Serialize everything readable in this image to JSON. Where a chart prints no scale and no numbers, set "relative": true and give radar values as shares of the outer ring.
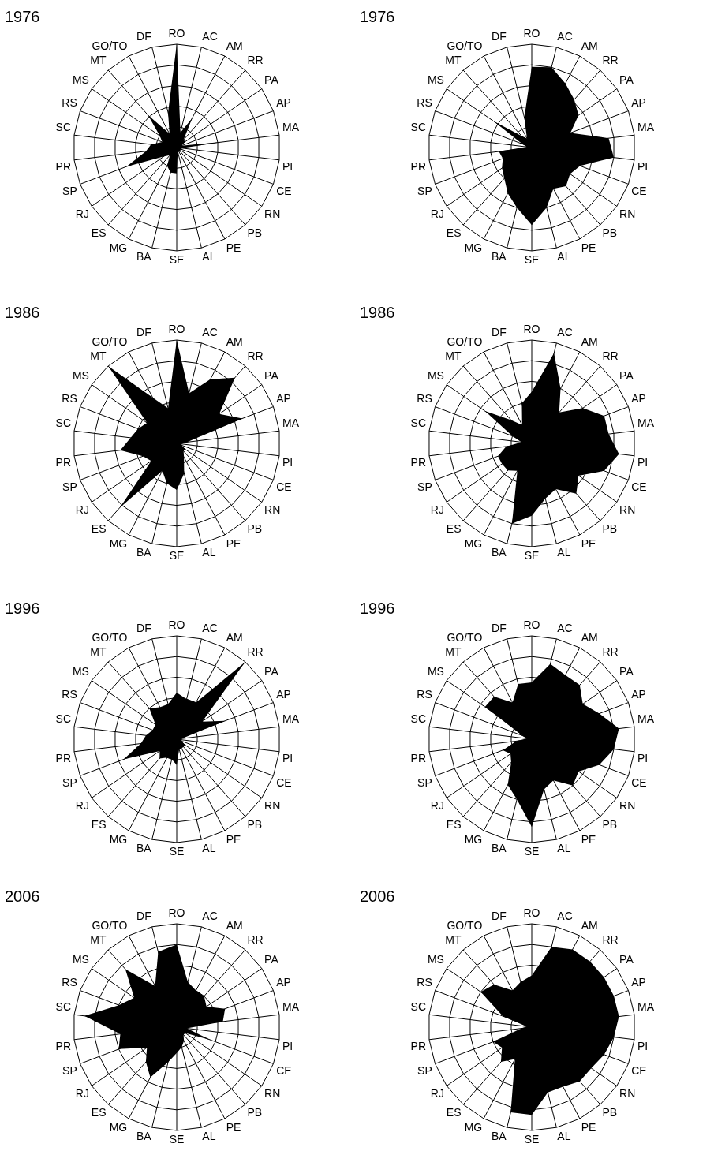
{
  "chart_data": [
    {
      "type": "radar",
      "title": "1976",
      "relative": true,
      "grid": true,
      "categories": [
        "RO",
        "AC",
        "AM",
        "RR",
        "PA",
        "AP",
        "MA",
        "PI",
        "CE",
        "RN",
        "PB",
        "PE",
        "AL",
        "SE",
        "BA",
        "MG",
        "ES",
        "RJ",
        "SP",
        "PR",
        "SC",
        "RS",
        "MS",
        "MT",
        "GO/TO",
        "DF"
      ],
      "series": [
        {
          "color": "#000000",
          "values": [
            1.0,
            0.15,
            0.32,
            0.1,
            0.1,
            0.05,
            0.43,
            0.05,
            0.05,
            0.04,
            0.05,
            0.05,
            0.04,
            0.25,
            0.25,
            0.2,
            0.1,
            0.15,
            0.52,
            0.3,
            0.25,
            0.15,
            0.2,
            0.42,
            0.15,
            0.35
          ]
        }
      ]
    },
    {
      "type": "radar",
      "title": "1976",
      "relative": true,
      "grid": true,
      "categories": [
        "RO",
        "AC",
        "AM",
        "RR",
        "PA",
        "AP",
        "MA",
        "PI",
        "CE",
        "RN",
        "PB",
        "PE",
        "AL",
        "SE",
        "BA",
        "MG",
        "ES",
        "RJ",
        "SP",
        "PR",
        "SC",
        "RS",
        "MS",
        "MT",
        "GO/TO",
        "DF"
      ],
      "series": [
        {
          "color": "#000000",
          "values": [
            0.78,
            0.8,
            0.7,
            0.62,
            0.55,
            0.4,
            0.75,
            0.8,
            0.5,
            0.45,
            0.5,
            0.45,
            0.6,
            0.75,
            0.6,
            0.5,
            0.4,
            0.35,
            0.3,
            0.32,
            0.05,
            0.1,
            0.45,
            0.15,
            0.1,
            0.3
          ]
        }
      ]
    },
    {
      "type": "radar",
      "title": "1986",
      "relative": true,
      "grid": true,
      "categories": [
        "RO",
        "AC",
        "AM",
        "RR",
        "PA",
        "AP",
        "MA",
        "PI",
        "CE",
        "RN",
        "PB",
        "PE",
        "AL",
        "SE",
        "BA",
        "MG",
        "ES",
        "RJ",
        "SP",
        "PR",
        "SC",
        "RS",
        "MS",
        "MT",
        "GO/TO",
        "DF"
      ],
      "series": [
        {
          "color": "#000000",
          "values": [
            1.0,
            0.5,
            0.7,
            0.85,
            0.5,
            0.68,
            0.1,
            0.05,
            0.05,
            0.1,
            0.1,
            0.15,
            0.3,
            0.45,
            0.4,
            0.3,
            0.83,
            0.3,
            0.35,
            0.55,
            0.45,
            0.4,
            0.35,
            1.0,
            0.5,
            0.35
          ]
        }
      ]
    },
    {
      "type": "radar",
      "title": "1986",
      "relative": true,
      "grid": true,
      "categories": [
        "RO",
        "AC",
        "AM",
        "RR",
        "PA",
        "AP",
        "MA",
        "PI",
        "CE",
        "RN",
        "PB",
        "PE",
        "AL",
        "SE",
        "BA",
        "MG",
        "ES",
        "RJ",
        "SP",
        "PR",
        "SC",
        "RS",
        "MS",
        "MT",
        "GO/TO",
        "DF"
      ],
      "series": [
        {
          "color": "#000000",
          "values": [
            0.5,
            0.9,
            0.6,
            0.4,
            0.6,
            0.75,
            0.75,
            0.85,
            0.75,
            0.55,
            0.65,
            0.5,
            0.55,
            0.7,
            0.8,
            0.3,
            0.35,
            0.35,
            0.35,
            0.25,
            0.1,
            0.2,
            0.55,
            0.3,
            0.2,
            0.4
          ]
        }
      ]
    },
    {
      "type": "radar",
      "title": "1996",
      "relative": true,
      "grid": true,
      "categories": [
        "RO",
        "AC",
        "AM",
        "RR",
        "PA",
        "AP",
        "MA",
        "PI",
        "CE",
        "RN",
        "PB",
        "PE",
        "AL",
        "SE",
        "BA",
        "MG",
        "ES",
        "RJ",
        "SP",
        "PR",
        "SC",
        "RS",
        "MS",
        "MT",
        "GO/TO",
        "DF"
      ],
      "series": [
        {
          "color": "#000000",
          "values": [
            0.45,
            0.4,
            0.4,
            1.0,
            0.3,
            0.5,
            0.05,
            0.05,
            0.05,
            0.1,
            0.1,
            0.1,
            0.1,
            0.25,
            0.2,
            0.2,
            0.25,
            0.2,
            0.55,
            0.35,
            0.3,
            0.25,
            0.25,
            0.4,
            0.35,
            0.35
          ]
        }
      ]
    },
    {
      "type": "radar",
      "title": "1996",
      "relative": true,
      "grid": true,
      "categories": [
        "RO",
        "AC",
        "AM",
        "RR",
        "PA",
        "AP",
        "MA",
        "PI",
        "CE",
        "RN",
        "PB",
        "PE",
        "AL",
        "SE",
        "BA",
        "MG",
        "ES",
        "RJ",
        "SP",
        "PR",
        "SC",
        "RS",
        "MS",
        "MT",
        "GO/TO",
        "DF"
      ],
      "series": [
        {
          "color": "#000000",
          "values": [
            0.55,
            0.75,
            0.7,
            0.7,
            0.6,
            0.7,
            0.85,
            0.8,
            0.7,
            0.55,
            0.6,
            0.45,
            0.5,
            0.85,
            0.6,
            0.5,
            0.3,
            0.25,
            0.3,
            0.15,
            0.05,
            0.1,
            0.55,
            0.55,
            0.4,
            0.55
          ]
        }
      ]
    },
    {
      "type": "radar",
      "title": "2006",
      "relative": true,
      "grid": true,
      "categories": [
        "RO",
        "AC",
        "AM",
        "RR",
        "PA",
        "AP",
        "MA",
        "PI",
        "CE",
        "RN",
        "PB",
        "PE",
        "AL",
        "SE",
        "BA",
        "MG",
        "ES",
        "RJ",
        "SP",
        "PR",
        "SC",
        "RS",
        "MS",
        "MT",
        "GO/TO",
        "DF"
      ],
      "series": [
        {
          "color": "#000000",
          "values": [
            0.8,
            0.45,
            0.4,
            0.4,
            0.35,
            0.5,
            0.45,
            0.1,
            0.35,
            0.1,
            0.1,
            0.15,
            0.2,
            0.25,
            0.35,
            0.55,
            0.45,
            0.35,
            0.6,
            0.55,
            0.9,
            0.6,
            0.5,
            0.75,
            0.45,
            0.75
          ]
        }
      ]
    },
    {
      "type": "radar",
      "title": "2006",
      "relative": true,
      "grid": true,
      "categories": [
        "RO",
        "AC",
        "AM",
        "RR",
        "PA",
        "AP",
        "MA",
        "PI",
        "CE",
        "RN",
        "PB",
        "PE",
        "AL",
        "SE",
        "BA",
        "MG",
        "ES",
        "RJ",
        "SP",
        "PR",
        "SC",
        "RS",
        "MS",
        "MT",
        "GO/TO",
        "DF"
      ],
      "series": [
        {
          "color": "#000000",
          "values": [
            0.5,
            0.8,
            0.85,
            0.85,
            0.85,
            0.85,
            0.85,
            0.8,
            0.75,
            0.7,
            0.7,
            0.65,
            0.65,
            0.85,
            0.85,
            0.35,
            0.45,
            0.35,
            0.4,
            0.1,
            0.05,
            0.3,
            0.6,
            0.55,
            0.4,
            0.45
          ]
        }
      ]
    }
  ]
}
